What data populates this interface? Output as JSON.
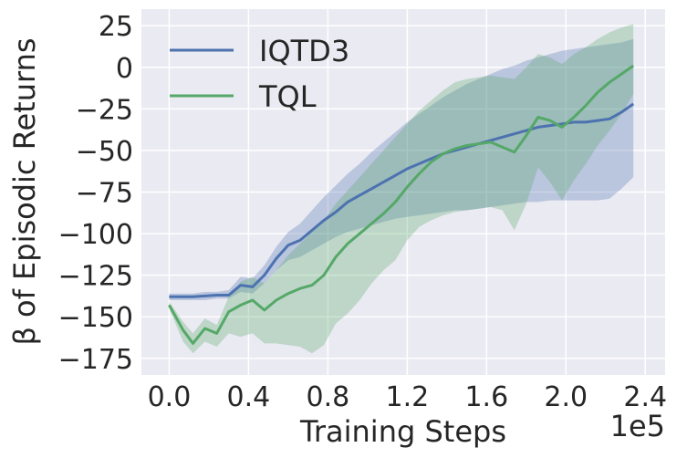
{
  "chart_data": {
    "type": "line",
    "title": "",
    "xlabel": "Training Steps",
    "ylabel": "β of Episodic Returns",
    "x_scale_label": "1e5",
    "xlim": [
      -0.14,
      2.5
    ],
    "ylim": [
      -185,
      35
    ],
    "xticks": [
      0.0,
      0.4,
      0.8,
      1.2,
      1.6,
      2.0,
      2.4
    ],
    "xtick_labels": [
      "0.0",
      "0.4",
      "0.8",
      "1.2",
      "1.6",
      "2.0",
      "2.4"
    ],
    "yticks": [
      25,
      0,
      -25,
      -50,
      -75,
      -100,
      -125,
      -150,
      -175
    ],
    "ytick_labels": [
      "25",
      "0",
      "−25",
      "−50",
      "−75",
      "−100",
      "−125",
      "−150",
      "−175"
    ],
    "grid": true,
    "legend_position": "top-left",
    "series": [
      {
        "name": "IQTD3",
        "color": "#4c72b0",
        "x": [
          0.0,
          0.07,
          0.12,
          0.18,
          0.24,
          0.3,
          0.36,
          0.42,
          0.48,
          0.54,
          0.6,
          0.66,
          0.72,
          0.78,
          0.84,
          0.9,
          0.96,
          1.02,
          1.08,
          1.14,
          1.2,
          1.26,
          1.32,
          1.38,
          1.44,
          1.5,
          1.56,
          1.62,
          1.68,
          1.74,
          1.8,
          1.86,
          1.92,
          1.98,
          2.04,
          2.1,
          2.16,
          2.22,
          2.28,
          2.34
        ],
        "y": [
          -138,
          -138,
          -138,
          -137.5,
          -137,
          -137,
          -131,
          -132,
          -125,
          -115,
          -107,
          -104,
          -98,
          -92,
          -87,
          -81,
          -77,
          -73,
          -69,
          -65,
          -61,
          -58,
          -55,
          -52,
          -50,
          -48,
          -46,
          -44,
          -42,
          -40,
          -38,
          -36,
          -35,
          -34,
          -33,
          -33,
          -32,
          -31,
          -27,
          -22
        ],
        "lower": [
          -140,
          -140,
          -140,
          -140,
          -139,
          -139,
          -135,
          -136,
          -130,
          -122,
          -116,
          -114,
          -110,
          -106,
          -102,
          -99,
          -97,
          -95,
          -93,
          -91,
          -90,
          -89,
          -88,
          -87,
          -86,
          -86,
          -85,
          -84,
          -83,
          -82,
          -81,
          -81,
          -80,
          -80,
          -80,
          -80,
          -80,
          -79,
          -73,
          -66
        ],
        "upper": [
          -136,
          -136,
          -136,
          -135,
          -135,
          -134,
          -126,
          -127,
          -119,
          -108,
          -99,
          -94,
          -86,
          -78,
          -71,
          -64,
          -58,
          -51,
          -45,
          -39,
          -33,
          -28,
          -23,
          -18,
          -14,
          -10,
          -7,
          -4,
          -1,
          1,
          4,
          6,
          8,
          10,
          11,
          12,
          13,
          14,
          15,
          17
        ]
      },
      {
        "name": "TQL",
        "color": "#55a868",
        "x": [
          0.0,
          0.07,
          0.12,
          0.18,
          0.24,
          0.3,
          0.36,
          0.42,
          0.48,
          0.54,
          0.6,
          0.66,
          0.72,
          0.78,
          0.84,
          0.9,
          0.96,
          1.02,
          1.08,
          1.14,
          1.2,
          1.26,
          1.32,
          1.38,
          1.44,
          1.5,
          1.56,
          1.62,
          1.68,
          1.74,
          1.8,
          1.86,
          1.92,
          1.98,
          2.04,
          2.1,
          2.16,
          2.22,
          2.28,
          2.34
        ],
        "y": [
          -143,
          -158,
          -166,
          -157,
          -160,
          -147,
          -143,
          -140,
          -146,
          -140,
          -136,
          -133,
          -131,
          -125,
          -114,
          -106,
          -100,
          -94,
          -88,
          -81,
          -72,
          -64,
          -57,
          -52,
          -49,
          -47,
          -46,
          -45,
          -48,
          -51,
          -41,
          -30,
          -32,
          -36,
          -30,
          -23,
          -15,
          -9,
          -4,
          1
        ],
        "lower": [
          -145,
          -165,
          -172,
          -165,
          -168,
          -160,
          -162,
          -160,
          -166,
          -166,
          -167,
          -168,
          -172,
          -167,
          -154,
          -148,
          -140,
          -130,
          -122,
          -116,
          -104,
          -96,
          -92,
          -89,
          -87,
          -86,
          -85,
          -84,
          -86,
          -98,
          -82,
          -60,
          -69,
          -80,
          -68,
          -58,
          -47,
          -38,
          -28,
          -16
        ],
        "upper": [
          -141,
          -153,
          -160,
          -151,
          -155,
          -138,
          -129,
          -126,
          -130,
          -122,
          -113,
          -106,
          -99,
          -92,
          -82,
          -74,
          -66,
          -58,
          -50,
          -42,
          -34,
          -26,
          -20,
          -14,
          -9,
          -7,
          -6,
          -5,
          -6,
          -7,
          0,
          8,
          6,
          2,
          8,
          12,
          17,
          21,
          24,
          26
        ]
      }
    ]
  }
}
